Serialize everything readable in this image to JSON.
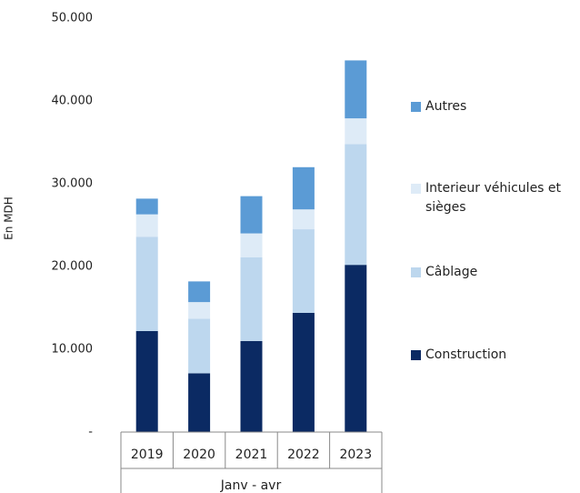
{
  "chart_data": {
    "type": "stacked_bar",
    "y_label": "En MDH",
    "x_group_label": "Janv - avr",
    "categories": [
      "2019",
      "2020",
      "2021",
      "2022",
      "2023"
    ],
    "series": [
      {
        "name": "Construction",
        "color": "#0b2a63",
        "values": [
          12200,
          7100,
          11000,
          14400,
          20200
        ]
      },
      {
        "name": "Câblage",
        "color": "#bdd7ee",
        "values": [
          11400,
          6600,
          10100,
          10100,
          14600
        ]
      },
      {
        "name": "Interieur véhicules et sièges",
        "color": "#deebf7",
        "values": [
          2700,
          2000,
          2900,
          2400,
          3100
        ]
      },
      {
        "name": "Autres",
        "color": "#5b9bd5",
        "values": [
          1900,
          2500,
          4500,
          5100,
          7000
        ]
      }
    ],
    "ylim": [
      0,
      50000
    ],
    "yticks": [
      {
        "value": 0,
        "label": "-"
      },
      {
        "value": 10000,
        "label": "10.000"
      },
      {
        "value": 20000,
        "label": "20.000"
      },
      {
        "value": 30000,
        "label": "30.000"
      },
      {
        "value": 40000,
        "label": "40.000"
      },
      {
        "value": 50000,
        "label": "50.000"
      }
    ],
    "grid": false,
    "legend": "right"
  }
}
